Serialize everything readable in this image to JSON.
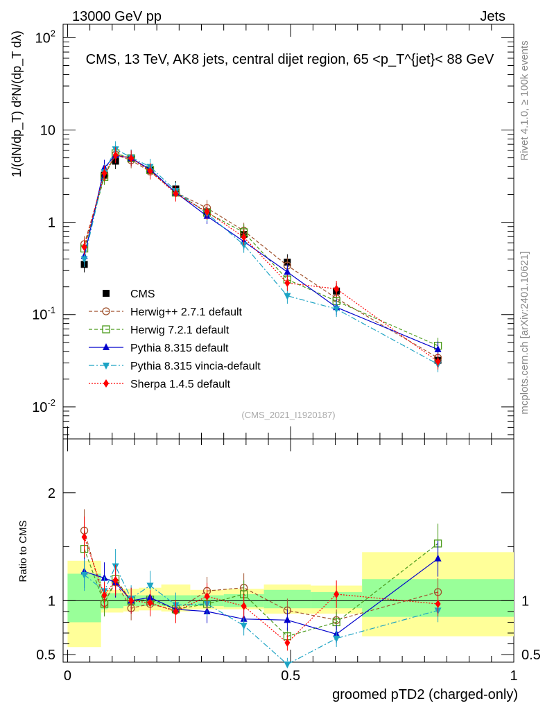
{
  "header": {
    "beam": "13000 GeV pp",
    "category": "Jets",
    "side_label_1": "Rivet 4.1.0, ≥ 100k events",
    "side_label_2": "mcplots.cern.ch [arXiv:2401.10621]",
    "watermark": "(CMS_2021_I1920187)"
  },
  "colors": {
    "CMS": "#000000",
    "Herwig++ 2.7.1 default": "#a0522d",
    "Herwig 7.2.1 default": "#4a9a1a",
    "Pythia 8.315 default": "#0000cc",
    "Pythia 8.315 vincia-default": "#1ca3c4",
    "Sherpa 1.4.5 default": "#ff0000",
    "band_inner": "#99ff99",
    "band_outer": "#ffff99"
  },
  "chart_data": [
    {
      "type": "line",
      "panel": "main",
      "title": "CMS, 13 TeV, AK8 jets, central dijet region, 65 <p_T^{jet}< 88 GeV",
      "ylabel": "1/(dN/dp_T) d²N/(dp_T dλ)",
      "yscale": "log",
      "ylim": [
        0.0045,
        140
      ],
      "xlim": [
        -0.01,
        1.0
      ],
      "y_tick_labels": [
        "10^{-2}",
        "10^{-1}",
        "1",
        "10",
        "10^{2}"
      ],
      "x": [
        0.0375,
        0.0825,
        0.1075,
        0.1425,
        0.185,
        0.2425,
        0.3125,
        0.395,
        0.4925,
        0.6025,
        0.83
      ],
      "series": [
        {
          "name": "CMS",
          "values": [
            0.35,
            3.25,
            4.6,
            4.95,
            3.65,
            2.3,
            1.3,
            0.74,
            0.37,
            0.18,
            0.032
          ]
        },
        {
          "name": "Herwig++ 2.7.1 default",
          "values": [
            0.58,
            3.2,
            5.4,
            4.7,
            3.55,
            2.1,
            1.43,
            0.81,
            0.34,
            0.15,
            0.034
          ]
        },
        {
          "name": "Herwig 7.2.1 default",
          "values": [
            0.52,
            3.1,
            5.6,
            4.95,
            3.7,
            2.1,
            1.27,
            0.78,
            0.24,
            0.14,
            0.046
          ]
        },
        {
          "name": "Pythia 8.315 default",
          "values": [
            0.43,
            3.9,
            5.35,
            4.95,
            3.75,
            2.1,
            1.17,
            0.62,
            0.29,
            0.12,
            0.042
          ]
        },
        {
          "name": "Pythia 8.315 vincia-default",
          "values": [
            0.4,
            3.5,
            6.2,
            5.05,
            4.0,
            2.2,
            1.25,
            0.57,
            0.16,
            0.115,
            0.029
          ]
        },
        {
          "name": "Sherpa 1.4.5 default",
          "values": [
            0.54,
            3.4,
            5.35,
            4.95,
            3.6,
            2.05,
            1.3,
            0.69,
            0.22,
            0.19,
            0.031
          ]
        }
      ],
      "legend": {
        "placement": "middle-left",
        "entries": [
          "CMS",
          "Herwig++ 2.7.1 default",
          "Herwig 7.2.1 default",
          "Pythia 8.315 default",
          "Pythia 8.315 vincia-default",
          "Sherpa 1.4.5 default"
        ]
      }
    },
    {
      "type": "line",
      "panel": "ratio",
      "ylabel": "Ratio to CMS",
      "xlabel": "groomed pTD2 (charged-only)",
      "ylim": [
        0.43,
        2.5
      ],
      "xlim": [
        -0.01,
        1.0
      ],
      "x_tick_labels": [
        "0",
        "0.5",
        "1"
      ],
      "y_tick_labels": [
        "0.5",
        "1",
        "2"
      ],
      "x": [
        0.0375,
        0.0825,
        0.1075,
        0.1425,
        0.185,
        0.2425,
        0.3125,
        0.395,
        0.4925,
        0.6025,
        0.83
      ],
      "bins": [
        [
          0,
          0.075
        ],
        [
          0.075,
          0.09
        ],
        [
          0.09,
          0.125
        ],
        [
          0.125,
          0.16
        ],
        [
          0.16,
          0.21
        ],
        [
          0.21,
          0.275
        ],
        [
          0.275,
          0.35
        ],
        [
          0.35,
          0.44
        ],
        [
          0.44,
          0.545
        ],
        [
          0.545,
          0.66
        ],
        [
          0.66,
          1.0
        ]
      ],
      "band_inner": [
        [
          0.8,
          1.25
        ],
        [
          0.92,
          1.07
        ],
        [
          0.93,
          1.07
        ],
        [
          0.95,
          1.05
        ],
        [
          0.95,
          1.05
        ],
        [
          0.95,
          1.05
        ],
        [
          0.95,
          1.05
        ],
        [
          0.94,
          1.06
        ],
        [
          0.93,
          1.1
        ],
        [
          0.93,
          1.08
        ],
        [
          0.85,
          1.2
        ]
      ],
      "band_outer": [
        [
          0.57,
          1.37
        ],
        [
          0.89,
          1.1
        ],
        [
          0.89,
          1.1
        ],
        [
          0.9,
          1.11
        ],
        [
          0.91,
          1.12
        ],
        [
          0.9,
          1.15
        ],
        [
          0.92,
          1.1
        ],
        [
          0.92,
          1.11
        ],
        [
          0.88,
          1.15
        ],
        [
          0.88,
          1.14
        ],
        [
          0.67,
          1.45
        ]
      ],
      "series": [
        {
          "name": "Herwig++ 2.7.1 default",
          "values": [
            1.65,
            0.98,
            1.17,
            0.93,
            0.97,
            0.91,
            1.09,
            1.12,
            0.91,
            0.82,
            1.08
          ]
        },
        {
          "name": "Herwig 7.2.1 default",
          "values": [
            1.48,
            0.97,
            1.2,
            1.0,
            1.01,
            0.92,
            0.97,
            1.06,
            0.67,
            0.8,
            1.53
          ]
        },
        {
          "name": "Pythia 8.315 default",
          "values": [
            1.27,
            1.21,
            1.17,
            1.0,
            1.03,
            0.92,
            0.9,
            0.83,
            0.82,
            0.69,
            1.39
          ]
        },
        {
          "name": "Pythia 8.315 vincia-default",
          "values": [
            1.24,
            1.09,
            1.32,
            1.02,
            1.14,
            0.96,
            0.97,
            0.77,
            0.41,
            0.65,
            0.91
          ]
        },
        {
          "name": "Sherpa 1.4.5 default",
          "values": [
            1.59,
            1.05,
            1.19,
            1.0,
            0.98,
            0.9,
            1.04,
            0.95,
            0.61,
            1.06,
            0.97
          ]
        }
      ]
    }
  ]
}
